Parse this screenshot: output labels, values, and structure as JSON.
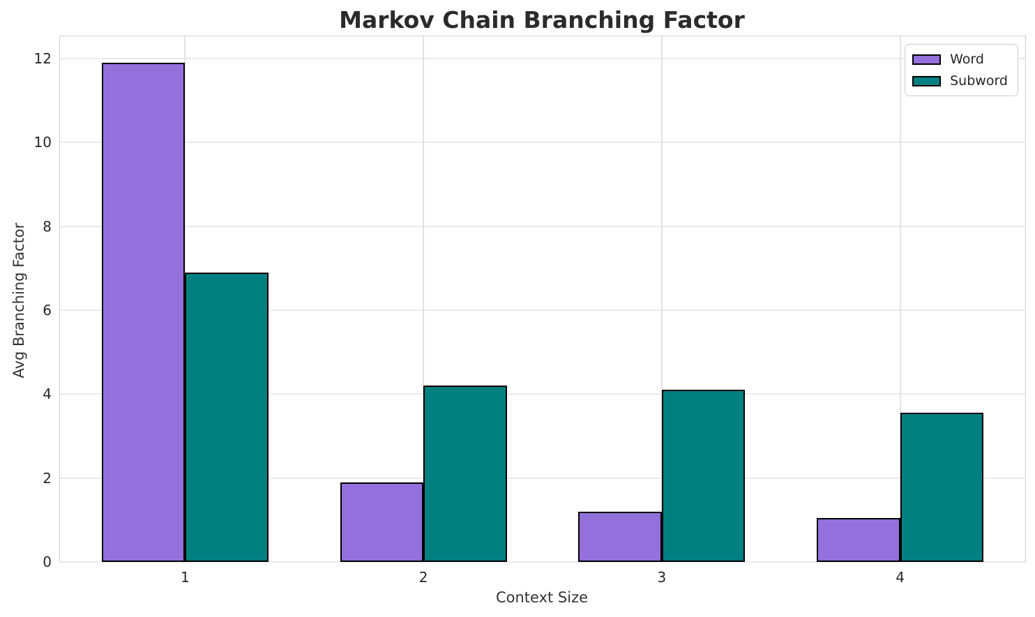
{
  "chart_data": {
    "type": "bar",
    "title": "Markov Chain Branching Factor",
    "xlabel": "Context Size",
    "ylabel": "Avg Branching Factor",
    "categories": [
      "1",
      "2",
      "3",
      "4"
    ],
    "series": [
      {
        "name": "Word",
        "color": "#9370DB",
        "values": [
          11.9,
          1.9,
          1.2,
          1.05
        ]
      },
      {
        "name": "Subword",
        "color": "#008080",
        "values": [
          6.9,
          4.2,
          4.1,
          3.55
        ]
      }
    ],
    "yticks": [
      0,
      2,
      4,
      6,
      8,
      10,
      12
    ],
    "ylim": [
      0,
      12.53
    ],
    "xlim": [
      0.475,
      4.525
    ],
    "bar_width": 0.35,
    "bar_edge_color": "#000000",
    "grid": true,
    "grid_color": "#eaeaea",
    "spine_color": "#cfcfcf",
    "text_color": "#262626",
    "legend_position": "upper right"
  }
}
